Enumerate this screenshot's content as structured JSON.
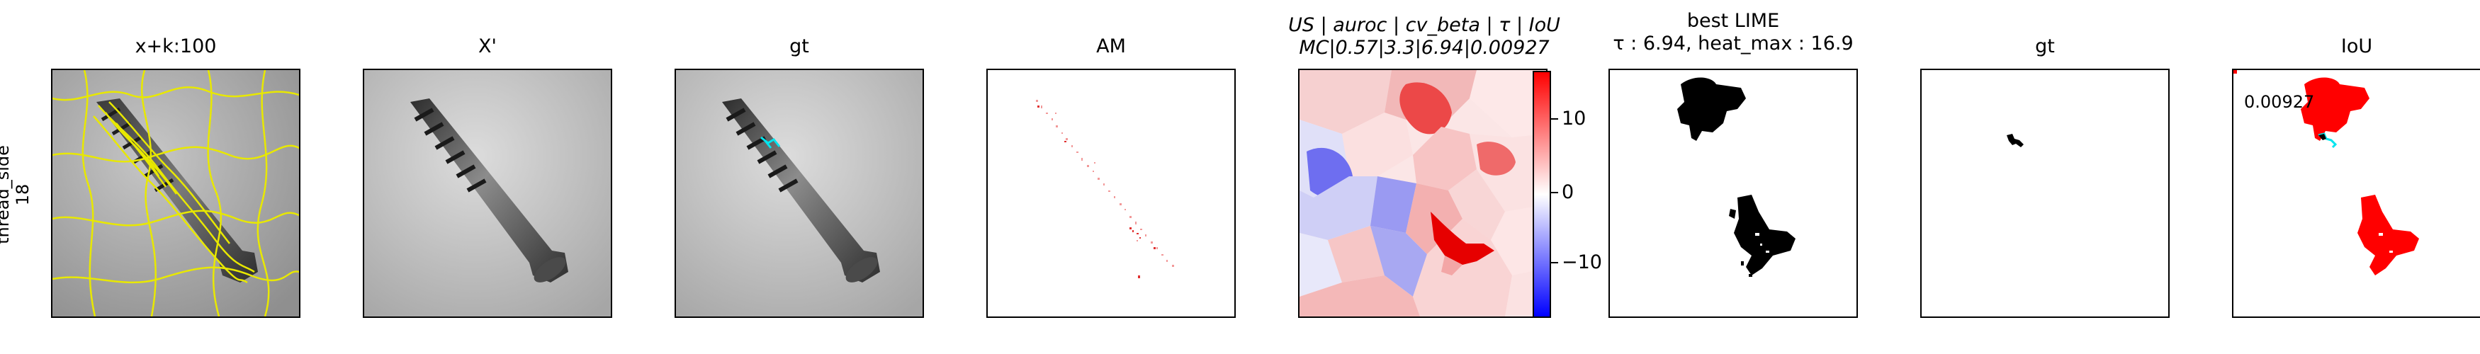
{
  "row_label": {
    "line1": "thread_side",
    "line2": "18"
  },
  "panels": [
    {
      "title": "x+k:100",
      "icon": "superpixel-overlay"
    },
    {
      "title": "X'",
      "icon": "screw-image"
    },
    {
      "title": "gt",
      "icon": "screw-image-with-gt"
    },
    {
      "title": "AM",
      "icon": "attribution-map"
    },
    {
      "title_line1": "US | auroc | cv_beta | τ | IoU",
      "title_line2": "MC|0.57|3.3|6.94|0.00927",
      "icon": "lime-heatmap"
    },
    {
      "title_line1": "best LIME",
      "title_line2": "τ : 6.94, heat_max : 16.9",
      "icon": "binary-mask"
    },
    {
      "title": "gt",
      "icon": "gt-mask"
    },
    {
      "title": "IoU",
      "icon": "iou-overlay"
    }
  ],
  "colorbar": {
    "ticks": [
      "10",
      "0",
      "−10"
    ],
    "colors": {
      "high": "#ff0000",
      "mid": "#ffffff",
      "low": "#0000ff"
    }
  },
  "iou_value": "0.00927",
  "colors": {
    "superpixel": "#e8e800",
    "gt_marker": "#00e5ee",
    "mask": "#ff0000"
  }
}
